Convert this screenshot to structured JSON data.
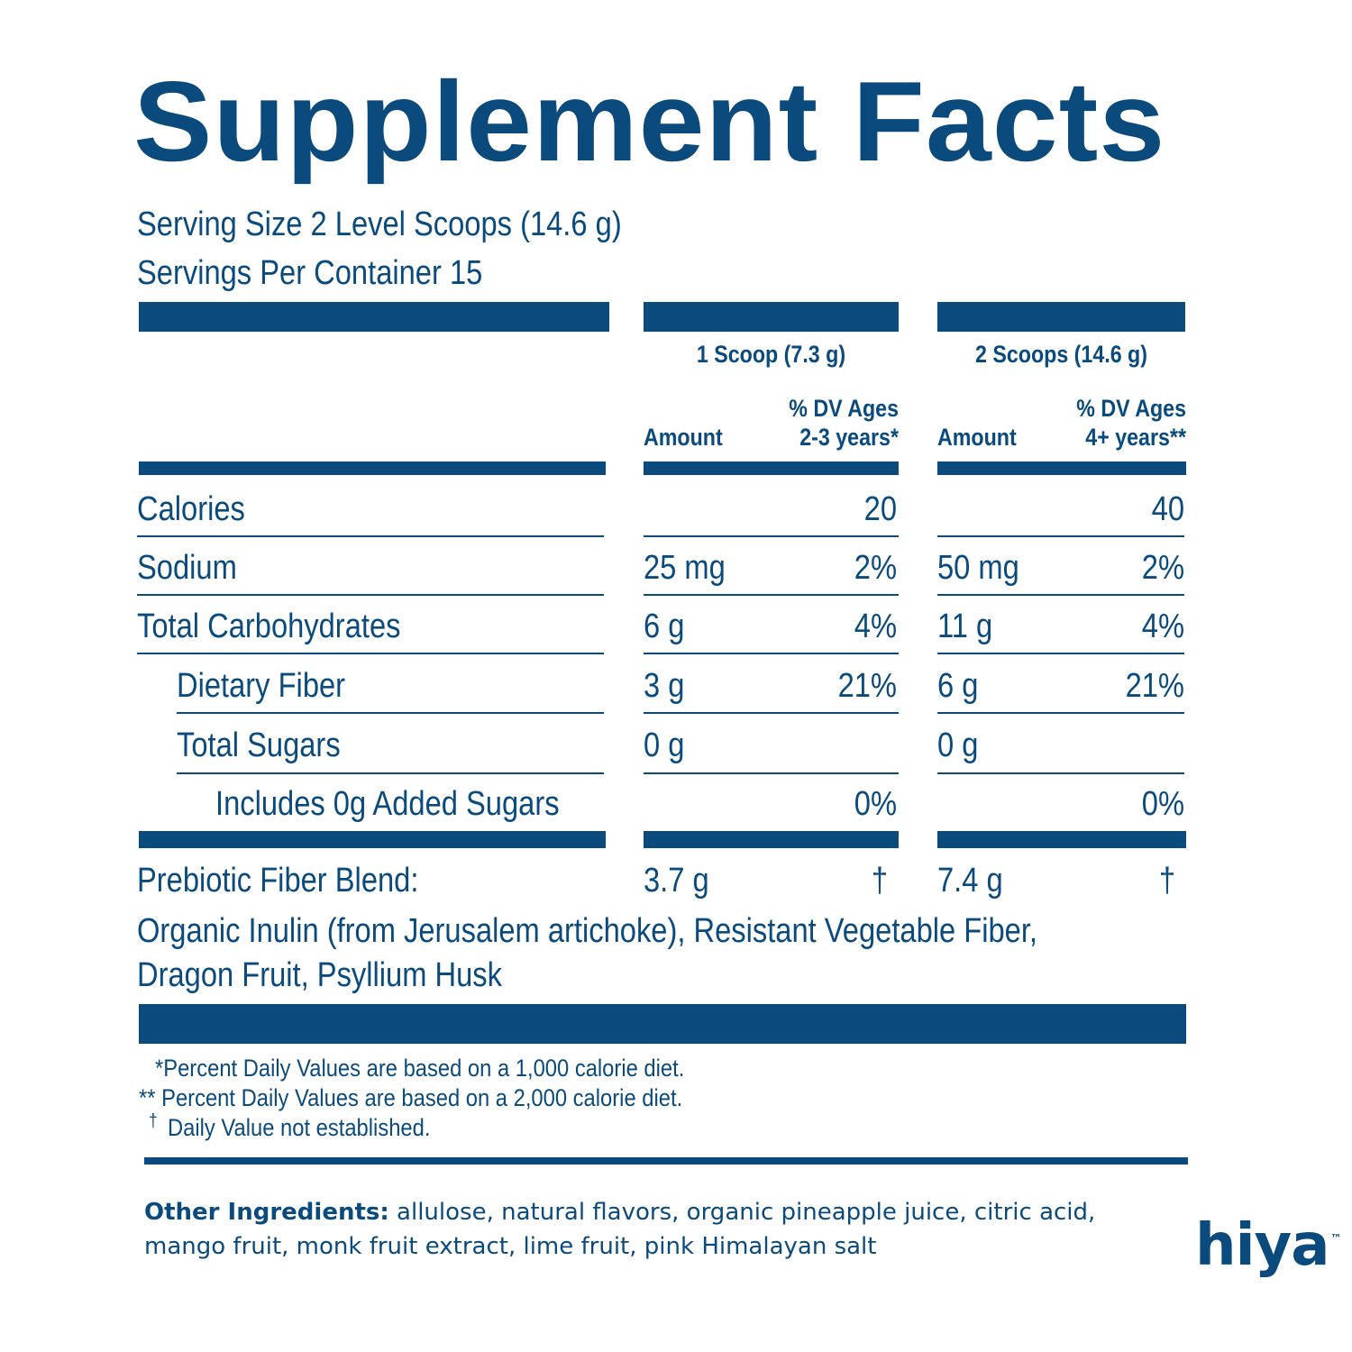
{
  "title": "Supplement Facts",
  "serving_size": "Serving Size 2 Level Scoops (14.6 g)",
  "servings_per_container": "Servings Per Container 15",
  "columns": {
    "col1_header": "1 Scoop (7.3 g)",
    "col2_header": "2 Scoops (14.6 g)",
    "amount_label": "Amount",
    "dv1_line1": "% DV Ages",
    "dv1_line2": "2-3 years*",
    "dv2_line1": "% DV Ages",
    "dv2_line2": "4+ years**"
  },
  "rows": [
    {
      "name": "Calories",
      "amt1": "",
      "dv1": "20",
      "amt2": "",
      "dv2": "40"
    },
    {
      "name": "Sodium",
      "amt1": "25 mg",
      "dv1": "2%",
      "amt2": "50 mg",
      "dv2": "2%"
    },
    {
      "name": "Total Carbohydrates",
      "amt1": "6 g",
      "dv1": "4%",
      "amt2": "11 g",
      "dv2": "4%"
    },
    {
      "name": "Dietary Fiber",
      "amt1": "3 g",
      "dv1": "21%",
      "amt2": "6 g",
      "dv2": "21%"
    },
    {
      "name": "Total Sugars",
      "amt1": "0 g",
      "dv1": "",
      "amt2": "0 g",
      "dv2": ""
    },
    {
      "name": "Includes 0g Added Sugars",
      "amt1": "",
      "dv1": "0%",
      "amt2": "",
      "dv2": "0%"
    }
  ],
  "prebiotic": {
    "name": "Prebiotic Fiber Blend:",
    "amt1": "3.7 g",
    "dv1": "†",
    "amt2": "7.4 g",
    "dv2": "†",
    "desc_line1": "Organic Inulin (from Jerusalem artichoke), Resistant Vegetable Fiber,",
    "desc_line2": "Dragon Fruit, Psyllium Husk"
  },
  "footnotes": {
    "line1": "*Percent Daily Values are based on a 1,000 calorie diet.",
    "line2": "** Percent Daily Values are based on a 2,000 calorie diet.",
    "line3_mark": "†",
    "line3": "Daily Value not established."
  },
  "other_ingredients": {
    "label": "Other Ingredients:",
    "line1": "allulose, natural flavors, organic pineapple juice, citric acid,",
    "line2": "mango fruit, monk fruit extract, lime fruit, pink Himalayan salt"
  },
  "logo": {
    "text": "hiya",
    "tm": "™"
  },
  "colors": {
    "brand_blue": "#0a4a7d"
  }
}
